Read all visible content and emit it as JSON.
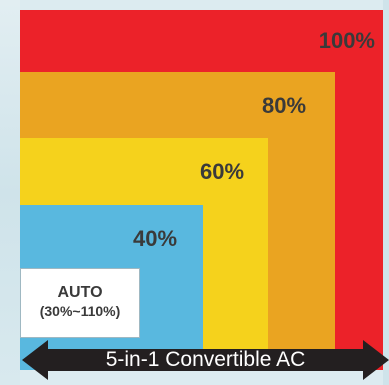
{
  "levels": [
    {
      "label": "100%",
      "color": "#ec2229"
    },
    {
      "label": "80%",
      "color": "#eaa421"
    },
    {
      "label": "60%",
      "color": "#f5d21c"
    },
    {
      "label": "40%",
      "color": "#59b8df"
    }
  ],
  "auto": {
    "title": "AUTO",
    "range": "(30%~110%)",
    "color": "#ffffff"
  },
  "footer": {
    "label": "5-in-1 Convertible AC",
    "icon": "double-arrow-icon",
    "color": "#231f20"
  }
}
